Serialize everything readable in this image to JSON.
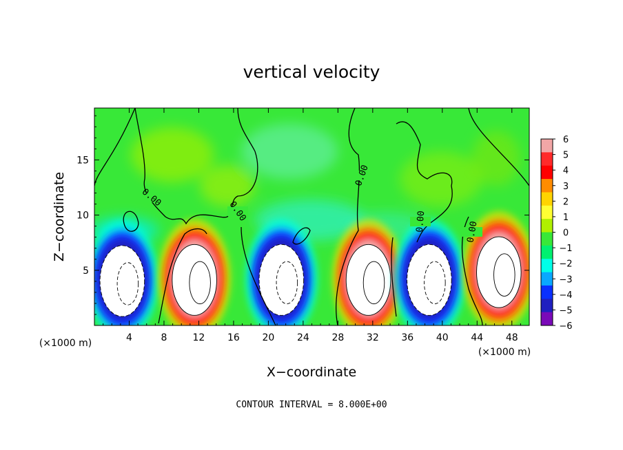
{
  "chart_data": {
    "type": "heatmap",
    "title": "vertical velocity",
    "xlabel": "X−coordinate",
    "ylabel": "Z−coordinate",
    "x_unit_label_left": "(×1000 m)",
    "x_unit_label_right": "(×1000 m)",
    "footer": "CONTOUR INTERVAL = 8.000E+00",
    "xlim": [
      0,
      50
    ],
    "ylim": [
      0,
      19.7
    ],
    "x_ticks": [
      "4",
      "8",
      "12",
      "16",
      "20",
      "24",
      "28",
      "32",
      "36",
      "40",
      "44",
      "48"
    ],
    "x_tick_values": [
      4,
      8,
      12,
      16,
      20,
      24,
      28,
      32,
      36,
      40,
      44,
      48
    ],
    "y_ticks": [
      "5",
      "10",
      "15"
    ],
    "y_tick_values": [
      5,
      10,
      15
    ],
    "colorbar": {
      "labels": [
        "6",
        "5",
        "4",
        "3",
        "2",
        "1",
        "0",
        "−1",
        "−2",
        "−3",
        "−4",
        "−5",
        "−6"
      ],
      "range": [
        -6,
        6
      ],
      "colors": [
        "#f2a6a6",
        "#ff2a2a",
        "#ff0000",
        "#ff8c00",
        "#ffd400",
        "#ffff33",
        "#b0f000",
        "#38e838",
        "#00f070",
        "#00ffe8",
        "#0aa8ff",
        "#0a30ff",
        "#2020c0",
        "#7a0ab8"
      ]
    },
    "contour_label": "0.00",
    "cells": [
      {
        "x": 3.2,
        "z": 4.4,
        "sign": "down"
      },
      {
        "x": 11.5,
        "z": 4.5,
        "sign": "up"
      },
      {
        "x": 21.5,
        "z": 4.5,
        "sign": "down"
      },
      {
        "x": 31.5,
        "z": 4.5,
        "sign": "up"
      },
      {
        "x": 38.5,
        "z": 4.5,
        "sign": "down"
      },
      {
        "x": 46.5,
        "z": 5.2,
        "sign": "up"
      }
    ],
    "grid": false,
    "legend": "colorbar-right"
  }
}
